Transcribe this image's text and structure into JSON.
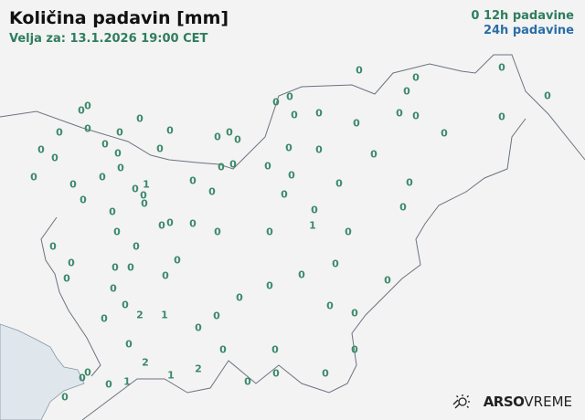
{
  "header": {
    "title": "Količina padavin [mm]",
    "valid": "Velja za: 13.1.2026 19:00 CET"
  },
  "legend": {
    "sample": "0",
    "h12": "12h padavine",
    "h24": "24h padavine",
    "color_12h": "#2f7d5e",
    "color_24h": "#2a6ea6"
  },
  "stations": [
    "0",
    "0",
    "0",
    "0",
    "0",
    "0",
    "0",
    "0",
    "0",
    "0",
    "0",
    "0",
    "0",
    "0",
    "0",
    "0",
    "0",
    "0",
    "0",
    "0",
    "0",
    "0",
    "0",
    "0",
    "0",
    "0",
    "0",
    "0",
    "0",
    "0",
    "0",
    "0",
    "0",
    "0",
    "0",
    "0",
    "0",
    "0",
    "0",
    "0",
    "0",
    "0",
    "0",
    "0",
    "1",
    "0",
    "0",
    "0",
    "0",
    "0",
    "0",
    "0",
    "0",
    "0",
    "0",
    "0",
    "0",
    "0",
    "1",
    "0",
    "0",
    "0",
    "0",
    "0",
    "0",
    "0",
    "0",
    "0",
    "0",
    "0",
    "0",
    "0",
    "0",
    "0",
    "0",
    "0",
    "2",
    "1",
    "0",
    "0",
    "0",
    "0",
    "0",
    "0",
    "0",
    "0",
    "0",
    "2",
    "2",
    "0",
    "0",
    "1",
    "1",
    "0",
    "0",
    "0",
    "0",
    "0"
  ],
  "logo": {
    "brand": "ARSO",
    "product": "VREME",
    "icon": "sun-cloud-icon"
  },
  "colors": {
    "land": "#f3f3f3",
    "sea": "#dfe7ed",
    "border": "#6b7380"
  }
}
